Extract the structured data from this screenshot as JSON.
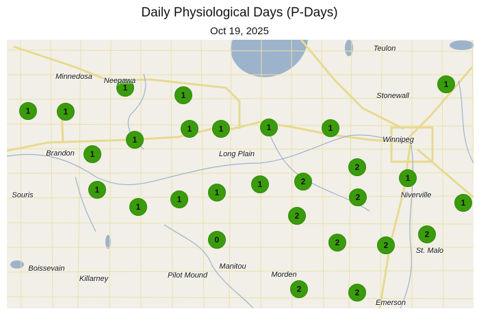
{
  "title": "Daily Physiological Days (P-Days)",
  "date": "Oct 19, 2025",
  "colors": {
    "marker": "#3a9b0c",
    "land": "#f1efe8",
    "water": "#9db3cb",
    "roads": "#e8d98f"
  },
  "places": [
    "Teulon",
    "Minnedosa",
    "Neepawa",
    "Stonewall",
    "Winnipeg",
    "Brandon",
    "Long Plain",
    "Souris",
    "Niverville",
    "St. Malo",
    "Boissevain",
    "Killarney",
    "Pilot Mound",
    "Manitou",
    "Morden",
    "Emerson"
  ],
  "stations": [
    1,
    1,
    1,
    1,
    1,
    1,
    1,
    1,
    1,
    1,
    1,
    1,
    1,
    1,
    1,
    1,
    2,
    2,
    1,
    2,
    2,
    1,
    2,
    0,
    2,
    2,
    2,
    2
  ]
}
